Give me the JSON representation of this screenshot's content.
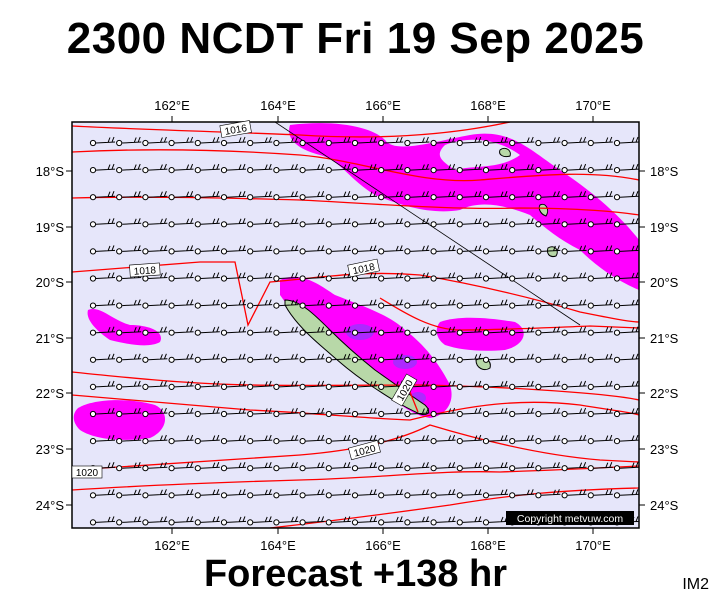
{
  "title": "2300 NCDT Fri 19 Sep 2025",
  "footer": "Forecast +138 hr",
  "model_label": "IM2",
  "copyright": "Copyright metvuw.com",
  "map": {
    "lon_labels": [
      "162°E",
      "164°E",
      "166°E",
      "168°E",
      "170°E"
    ],
    "lat_labels": [
      "18°S",
      "19°S",
      "20°S",
      "21°S",
      "22°S",
      "23°S",
      "24°S"
    ],
    "isobar_labels": [
      "1016",
      "1018",
      "1018",
      "1020",
      "1020",
      "1020"
    ],
    "colors": {
      "ocean": "#e6e6fa",
      "rain_light": "#ff00ff",
      "rain_heavy": "#9933ff",
      "isobar": "#ff0000",
      "land": "#b8d8a8"
    }
  }
}
